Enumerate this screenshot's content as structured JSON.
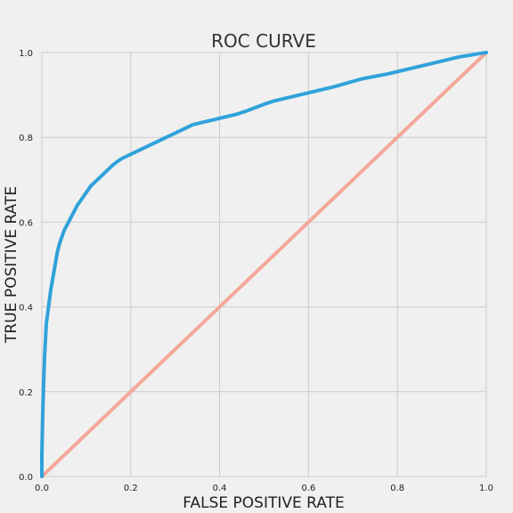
{
  "chart_data": {
    "type": "line",
    "title": "ROC CURVE",
    "xlabel": "FALSE POSITIVE RATE",
    "ylabel": "TRUE POSITIVE RATE",
    "xlim": [
      0.0,
      1.0
    ],
    "ylim": [
      0.0,
      1.0
    ],
    "x_ticks": [
      "0.0",
      "0.2",
      "0.4",
      "0.6",
      "0.8",
      "1.0"
    ],
    "y_ticks": [
      "0.0",
      "0.2",
      "0.4",
      "0.6",
      "0.8",
      "1.0"
    ],
    "grid": true,
    "colors": {
      "roc": "#30a2da",
      "diagonal": "#f4a89a",
      "background": "#f0f0f0",
      "grid": "#cbcbcb"
    },
    "series": [
      {
        "x": [
          0.0,
          0.0,
          0.002,
          0.004,
          0.006,
          0.008,
          0.01,
          0.015,
          0.02,
          0.025,
          0.03,
          0.035,
          0.04,
          0.05,
          0.06,
          0.07,
          0.08,
          0.09,
          0.1,
          0.11,
          0.12,
          0.13,
          0.14,
          0.15,
          0.16,
          0.17,
          0.18,
          0.19,
          0.2,
          0.21,
          0.22,
          0.24,
          0.26,
          0.28,
          0.3,
          0.32,
          0.34,
          0.36,
          0.38,
          0.4,
          0.42,
          0.44,
          0.46,
          0.48,
          0.5,
          0.52,
          0.54,
          0.56,
          0.58,
          0.6,
          0.62,
          0.64,
          0.66,
          0.68,
          0.7,
          0.72,
          0.74,
          0.76,
          0.78,
          0.8,
          0.82,
          0.84,
          0.86,
          0.88,
          0.9,
          0.92,
          0.94,
          0.96,
          0.98,
          1.0
        ],
        "y": [
          0.0,
          0.05,
          0.15,
          0.22,
          0.28,
          0.32,
          0.36,
          0.4,
          0.44,
          0.47,
          0.5,
          0.53,
          0.55,
          0.58,
          0.6,
          0.62,
          0.64,
          0.655,
          0.67,
          0.685,
          0.695,
          0.705,
          0.715,
          0.725,
          0.735,
          0.743,
          0.75,
          0.755,
          0.76,
          0.765,
          0.77,
          0.78,
          0.79,
          0.8,
          0.81,
          0.82,
          0.83,
          0.835,
          0.84,
          0.845,
          0.85,
          0.855,
          0.862,
          0.87,
          0.878,
          0.885,
          0.89,
          0.895,
          0.9,
          0.905,
          0.91,
          0.915,
          0.92,
          0.926,
          0.932,
          0.938,
          0.942,
          0.946,
          0.95,
          0.955,
          0.96,
          0.965,
          0.97,
          0.975,
          0.98,
          0.985,
          0.99,
          0.993,
          0.997,
          1.0
        ]
      },
      {
        "x": [
          0.0,
          1.0
        ],
        "y": [
          0.0,
          1.0
        ]
      }
    ]
  }
}
